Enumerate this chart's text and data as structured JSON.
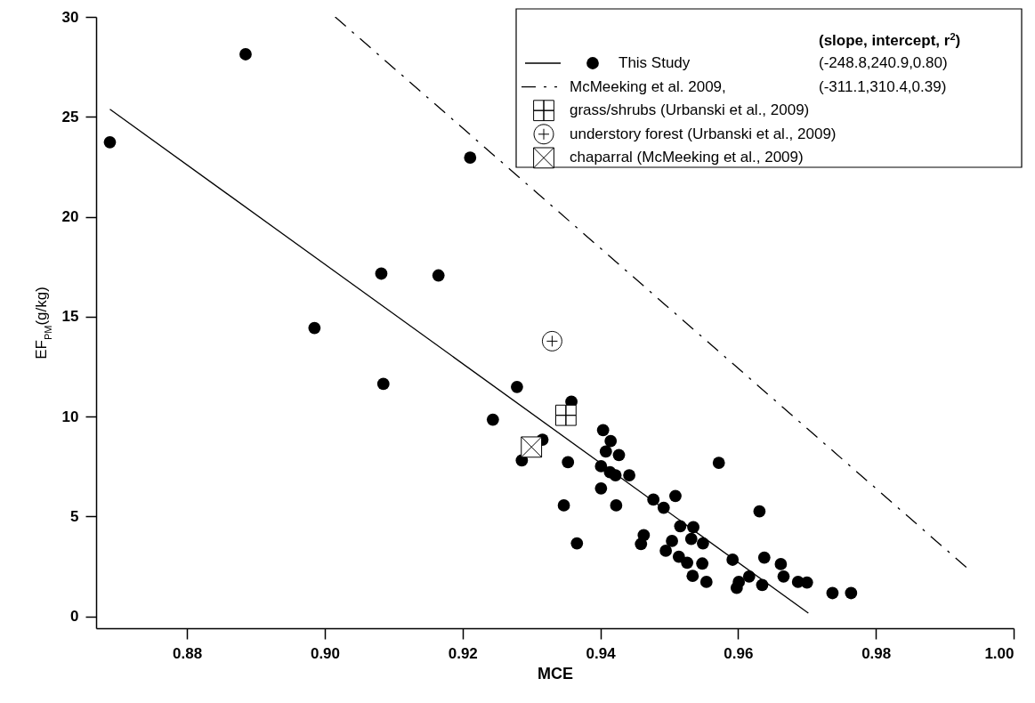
{
  "chart_data": {
    "type": "scatter",
    "xlabel": "MCE",
    "ylabel": "EF$_{PM}$(g/kg)",
    "legend_title": "(slope, intercept, r$^{2}$)",
    "legend": "top right",
    "grid": false,
    "xlim": [
      0.8668,
      1.0
    ],
    "xticks": [
      0.88,
      {
        "value": 0.9,
        "label": "0.90"
      },
      0.92,
      0.94,
      0.96,
      0.98,
      {
        "value": 1.0,
        "label": "1.00"
      }
    ],
    "ylim": [
      -0.6,
      30
    ],
    "yticks": [
      0,
      5,
      10,
      15,
      20,
      25,
      30
    ],
    "annotations": [
      "(-248.8,240.9,0.80)",
      "(-311.1,310.4,0.39)"
    ],
    "series": [
      {
        "type": "line",
        "color": "#000000",
        "line_style": "solid",
        "x": [
          0.8688,
          0.9702
        ],
        "values": [
          25.38,
          0.16
        ]
      },
      {
        "name": "This Study",
        "color": "#000000",
        "marker": "circle",
        "x": [
          0.8688,
          0.8885,
          0.8985,
          0.9082,
          0.9085,
          0.9165,
          0.9211,
          0.9244,
          0.9279,
          0.9358,
          0.9316,
          0.9286,
          0.9353,
          0.9404,
          0.9415,
          0.9408,
          0.9427,
          0.9401,
          0.9422,
          0.9442,
          0.9414,
          0.9401,
          0.9347,
          0.9423,
          0.9366,
          0.9477,
          0.9492,
          0.9509,
          0.9572,
          0.9631,
          0.9516,
          0.9535,
          0.9532,
          0.9549,
          0.9463,
          0.9459,
          0.9504,
          0.9495,
          0.9514,
          0.9526,
          0.9548,
          0.9534,
          0.9554,
          0.9592,
          0.9638,
          0.9662,
          0.9666,
          0.9616,
          0.9601,
          0.9598,
          0.9635,
          0.9687,
          0.97,
          0.9737,
          0.9764
        ],
        "values": [
          23.73,
          28.13,
          14.43,
          17.15,
          11.63,
          17.06,
          22.96,
          9.84,
          11.48,
          10.74,
          8.84,
          7.8,
          7.71,
          9.32,
          8.77,
          8.25,
          8.07,
          7.51,
          7.06,
          7.06,
          7.21,
          6.4,
          5.55,
          5.55,
          3.65,
          5.84,
          5.43,
          6.02,
          7.68,
          5.25,
          4.51,
          4.46,
          3.87,
          3.65,
          4.06,
          3.62,
          3.77,
          3.28,
          2.98,
          2.68,
          2.64,
          2.02,
          1.72,
          2.83,
          2.94,
          2.61,
          1.99,
          1.99,
          1.72,
          1.42,
          1.57,
          1.72,
          1.69,
          1.16,
          1.16
        ]
      },
      {
        "type": "line",
        "name": "McMeeking et al. 2009,",
        "color": "#000000",
        "line_style": "dashed",
        "x": [
          0.9015,
          0.9933
        ],
        "values": [
          30,
          2.4
        ]
      },
      {
        "name": "grass/shrubs (Urbanski et al., 2009)",
        "color": "#000000",
        "marker": "cross",
        "x": [
          0.935
        ],
        "values": [
          10.06
        ]
      },
      {
        "name": "understory forest (Urbanski et al., 2009)",
        "color": "#000000",
        "marker": "circle-plus",
        "x": [
          0.933
        ],
        "values": [
          13.77
        ]
      },
      {
        "name": "chaparral (McMeeking et al., 2009)",
        "color": "#000000",
        "marker": "cross",
        "x": [
          0.93
        ],
        "values": [
          8.47
        ]
      }
    ]
  }
}
